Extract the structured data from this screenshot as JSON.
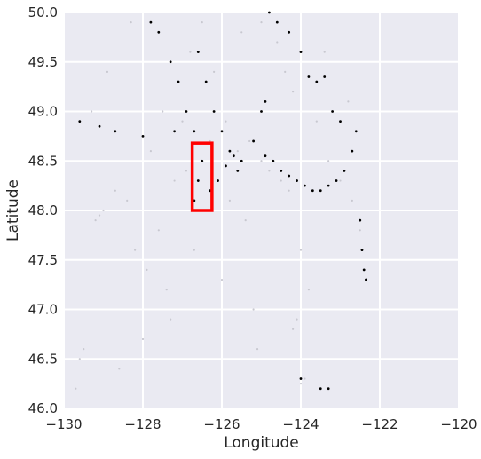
{
  "chart_data": {
    "type": "scatter",
    "title": "",
    "xlabel": "Longitude",
    "ylabel": "Latitude",
    "xlim": [
      -130,
      -120
    ],
    "ylim": [
      46.0,
      50.0
    ],
    "xticks": [
      -130,
      -128,
      -126,
      -124,
      -122,
      -120
    ],
    "xtick_labels": [
      "−130",
      "−128",
      "−126",
      "−124",
      "−122",
      "−120"
    ],
    "yticks": [
      46.0,
      46.5,
      47.0,
      47.5,
      48.0,
      48.5,
      49.0,
      49.5,
      50.0
    ],
    "ytick_labels": [
      "46.0",
      "46.5",
      "47.0",
      "47.5",
      "48.0",
      "48.5",
      "49.0",
      "49.5",
      "50.0"
    ],
    "grid": true,
    "background_color": "#EAEAF2",
    "grid_color": "#ffffff",
    "series": [
      {
        "marker_color": "#c8c8d0",
        "points": [
          [
            -129.7,
            46.2
          ],
          [
            -129.6,
            46.5
          ],
          [
            -129.5,
            46.6
          ],
          [
            -129.2,
            47.9
          ],
          [
            -129.1,
            47.95
          ],
          [
            -129.0,
            48.0
          ],
          [
            -128.7,
            48.2
          ],
          [
            -128.4,
            48.1
          ],
          [
            -128.2,
            47.6
          ],
          [
            -127.9,
            47.4
          ],
          [
            -127.6,
            47.8
          ],
          [
            -127.4,
            47.2
          ],
          [
            -127.2,
            48.3
          ],
          [
            -127.0,
            48.9
          ],
          [
            -126.8,
            49.6
          ],
          [
            -126.5,
            49.9
          ],
          [
            -126.2,
            49.4
          ],
          [
            -125.9,
            48.9
          ],
          [
            -125.6,
            48.6
          ],
          [
            -125.3,
            48.7
          ],
          [
            -125.0,
            48.5
          ],
          [
            -124.8,
            48.4
          ],
          [
            -124.5,
            48.3
          ],
          [
            -124.3,
            48.2
          ],
          [
            -124.0,
            47.6
          ],
          [
            -123.8,
            47.2
          ],
          [
            -124.1,
            46.9
          ],
          [
            -124.2,
            46.8
          ],
          [
            -123.9,
            46.3
          ],
          [
            -124.0,
            46.25
          ],
          [
            -125.2,
            47.0
          ],
          [
            -126.0,
            47.3
          ],
          [
            -126.7,
            47.6
          ],
          [
            -127.3,
            46.9
          ],
          [
            -128.0,
            46.7
          ],
          [
            -128.6,
            46.4
          ],
          [
            -125.5,
            49.8
          ],
          [
            -125.0,
            49.9
          ],
          [
            -124.6,
            49.7
          ],
          [
            -124.2,
            49.2
          ],
          [
            -123.6,
            48.9
          ],
          [
            -123.3,
            48.5
          ],
          [
            -123.0,
            48.3
          ],
          [
            -122.7,
            48.1
          ],
          [
            -122.5,
            47.8
          ],
          [
            -122.8,
            49.1
          ],
          [
            -123.4,
            49.6
          ],
          [
            -124.4,
            49.4
          ],
          [
            -127.8,
            48.6
          ],
          [
            -127.5,
            49.0
          ],
          [
            -126.9,
            48.4
          ],
          [
            -126.3,
            48.7
          ],
          [
            -125.8,
            48.1
          ],
          [
            -125.4,
            47.9
          ],
          [
            -128.9,
            49.4
          ],
          [
            -129.3,
            49.0
          ],
          [
            -128.3,
            49.9
          ],
          [
            -127.1,
            49.3
          ],
          [
            -126.6,
            48.0
          ],
          [
            -125.1,
            46.6
          ]
        ]
      },
      {
        "marker_color": "#000000",
        "points": [
          [
            -129.6,
            48.9
          ],
          [
            -129.1,
            48.85
          ],
          [
            -128.7,
            48.8
          ],
          [
            -128.0,
            48.75
          ],
          [
            -127.2,
            48.8
          ],
          [
            -127.8,
            49.9
          ],
          [
            -127.6,
            49.8
          ],
          [
            -127.3,
            49.5
          ],
          [
            -127.1,
            49.3
          ],
          [
            -126.9,
            49.0
          ],
          [
            -126.7,
            48.8
          ],
          [
            -126.6,
            49.6
          ],
          [
            -126.4,
            49.3
          ],
          [
            -126.2,
            49.0
          ],
          [
            -126.0,
            48.8
          ],
          [
            -125.8,
            48.6
          ],
          [
            -125.6,
            48.4
          ],
          [
            -126.3,
            48.2
          ],
          [
            -126.1,
            48.3
          ],
          [
            -125.9,
            48.45
          ],
          [
            -125.7,
            48.55
          ],
          [
            -125.5,
            48.5
          ],
          [
            -125.2,
            48.7
          ],
          [
            -124.9,
            48.55
          ],
          [
            -124.7,
            48.5
          ],
          [
            -124.5,
            48.4
          ],
          [
            -124.3,
            48.35
          ],
          [
            -124.1,
            48.3
          ],
          [
            -123.9,
            48.25
          ],
          [
            -123.7,
            48.2
          ],
          [
            -123.5,
            48.2
          ],
          [
            -123.3,
            48.25
          ],
          [
            -123.1,
            48.3
          ],
          [
            -122.9,
            48.4
          ],
          [
            -122.7,
            48.6
          ],
          [
            -122.6,
            48.8
          ],
          [
            -122.5,
            47.9
          ],
          [
            -122.45,
            47.6
          ],
          [
            -122.4,
            47.4
          ],
          [
            -122.35,
            47.3
          ],
          [
            -123.4,
            49.35
          ],
          [
            -123.6,
            49.3
          ],
          [
            -123.8,
            49.35
          ],
          [
            -123.0,
            48.9
          ],
          [
            -123.2,
            49.0
          ],
          [
            -124.9,
            49.1
          ],
          [
            -125.0,
            49.0
          ],
          [
            -124.8,
            50.0
          ],
          [
            -124.6,
            49.9
          ],
          [
            -124.3,
            49.8
          ],
          [
            -124.0,
            49.6
          ],
          [
            -123.3,
            46.2
          ],
          [
            -123.5,
            46.2
          ],
          [
            -124.0,
            46.3
          ],
          [
            -126.5,
            48.5
          ],
          [
            -126.6,
            48.3
          ],
          [
            -126.7,
            48.1
          ]
        ]
      }
    ],
    "annotations": [
      {
        "shape": "rectangle",
        "color": "#ff0000",
        "x_range": [
          -126.75,
          -126.25
        ],
        "y_range": [
          48.0,
          48.68
        ]
      }
    ]
  }
}
